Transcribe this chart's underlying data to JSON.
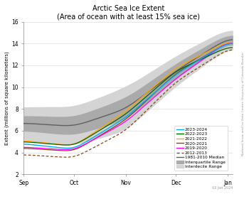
{
  "title_line1": "Arctic Sea Ice Extent",
  "title_line2": "(Area of ocean with at least 15% sea ice)",
  "ylabel": "Extent (millions of square kilometers)",
  "watermark": "National Snow and Ice Data Center, University of Colorado Boulder",
  "date_label": "03 Jan 2024",
  "ylim": [
    2,
    16
  ],
  "yticks": [
    2,
    4,
    6,
    8,
    10,
    12,
    14,
    16
  ],
  "months": [
    "Sep",
    "Oct",
    "Nov",
    "Dec",
    "Jan"
  ],
  "background_color": "#ffffff",
  "median_color": "#606060",
  "iqr_color": "#aaaaaa",
  "idr_color": "#d4d4d4",
  "series_colors": {
    "2023-2024": "#00aaff",
    "2022-2023": "#006400",
    "2021-2022": "#FFA500",
    "2020-2021": "#8B4513",
    "2019-2020": "#FF00FF",
    "2012-2013": "#8B4513"
  },
  "n_days": 126,
  "month_ticks": [
    0,
    30,
    61,
    91,
    122
  ],
  "figsize": [
    3.5,
    2.8
  ],
  "dpi": 100
}
